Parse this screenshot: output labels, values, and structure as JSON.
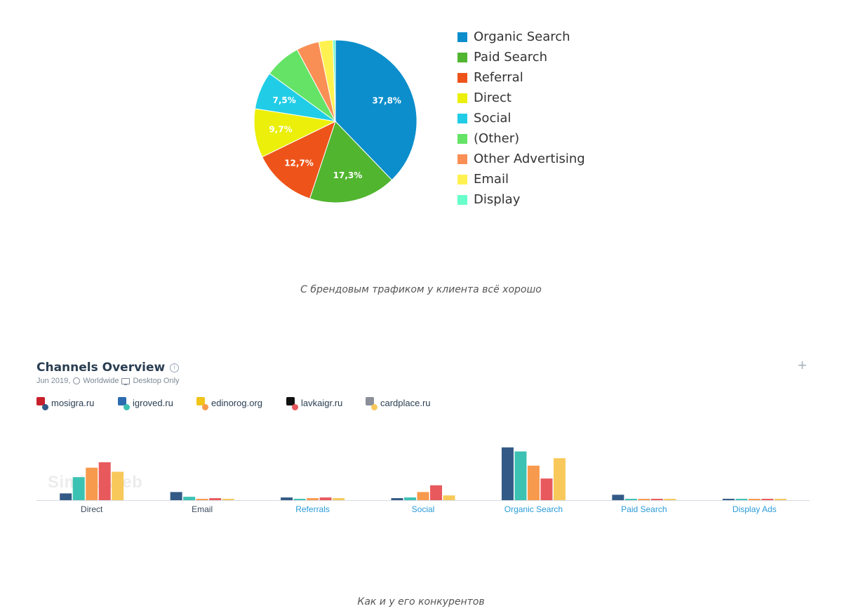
{
  "chart_data": [
    {
      "type": "pie",
      "series": [
        {
          "name": "Organic Search",
          "value": 37.8,
          "color": "#0b8ecb",
          "label": "37,8%"
        },
        {
          "name": "Paid Search",
          "value": 17.3,
          "color": "#51b530",
          "label": "17,3%"
        },
        {
          "name": "Referral",
          "value": 12.7,
          "color": "#ee5419",
          "label": "12,7%"
        },
        {
          "name": "Direct",
          "value": 9.7,
          "color": "#ebef09",
          "label": "9,7%"
        },
        {
          "name": "Social",
          "value": 7.5,
          "color": "#21cde6",
          "label": "7,5%"
        },
        {
          "name": "(Other)",
          "value": 7.2,
          "color": "#64e366",
          "label": ""
        },
        {
          "name": "Other Advertising",
          "value": 4.5,
          "color": "#fa8f55",
          "label": ""
        },
        {
          "name": "Email",
          "value": 2.8,
          "color": "#fff250",
          "label": ""
        },
        {
          "name": "Display",
          "value": 0.5,
          "color": "#68ffca",
          "label": ""
        }
      ],
      "legend_position": "right"
    },
    {
      "type": "bar",
      "title": "Channels Overview",
      "categories": [
        "Direct",
        "Email",
        "Referrals",
        "Social",
        "Organic Search",
        "Paid Search",
        "Display Ads"
      ],
      "category_link": [
        false,
        false,
        true,
        true,
        true,
        true,
        true
      ],
      "series": [
        {
          "name": "mosigra.ru",
          "color": "#335a86",
          "values": [
            10,
            12,
            4,
            3,
            78,
            8,
            2
          ]
        },
        {
          "name": "igroved.ru",
          "color": "#3cc2b3",
          "values": [
            34,
            5,
            2,
            4,
            72,
            2,
            2
          ]
        },
        {
          "name": "edinorog.org",
          "color": "#f89a4d",
          "values": [
            48,
            2,
            3,
            12,
            51,
            2,
            2
          ]
        },
        {
          "name": "lavkaigr.ru",
          "color": "#e8595d",
          "values": [
            56,
            3,
            4,
            22,
            32,
            2,
            2
          ]
        },
        {
          "name": "cardplace.ru",
          "color": "#f8c95a",
          "values": [
            42,
            2,
            3,
            7,
            62,
            2,
            2
          ]
        }
      ],
      "ylim": [
        0,
        85
      ],
      "grid": false,
      "legend_position": "top-left"
    }
  ],
  "captions": {
    "first": "С брендовым трафиком у клиента всё хорошо",
    "second": "Как и у его конкурентов"
  },
  "card": {
    "title": "Channels Overview",
    "meta": {
      "date": "Jun 2019,",
      "region": "Worldwide",
      "device": "Desktop Only"
    },
    "watermark": "SimilarWeb",
    "competitors": [
      {
        "name": "mosigra.ru",
        "logo_color": "#c8202b"
      },
      {
        "name": "igroved.ru",
        "logo_color": "#2b6cb0"
      },
      {
        "name": "edinorog.org",
        "logo_color": "#f0c419"
      },
      {
        "name": "lavkaigr.ru",
        "logo_color": "#111111"
      },
      {
        "name": "cardplace.ru",
        "logo_color": "#8a8f98"
      }
    ]
  },
  "icons": {
    "info": "info-icon",
    "plus": "plus-icon",
    "globe": "globe-icon",
    "monitor": "monitor-icon"
  }
}
